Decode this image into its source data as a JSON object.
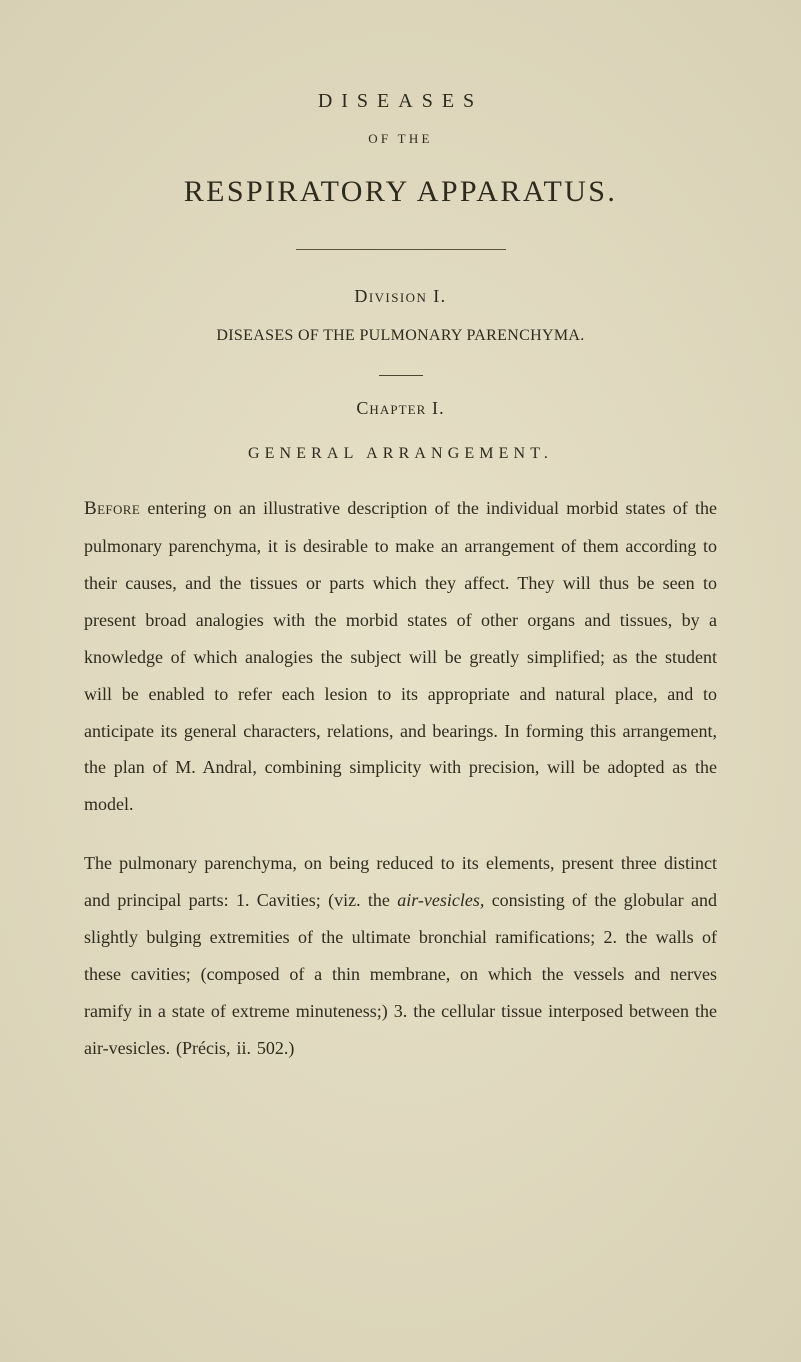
{
  "page": {
    "background_color": "#e3dcc1",
    "text_color": "#2d2a1e",
    "font_family": "Georgia, serif",
    "body_fontsize": 18,
    "body_lineheight": 2.05
  },
  "header": {
    "title_small": "DISEASES",
    "of_the": "OF THE",
    "title_big": "RESPIRATORY APPARATUS."
  },
  "division": {
    "label": "Division I.",
    "subtitle": "DISEASES OF THE PULMONARY PARENCHYMA."
  },
  "chapter": {
    "label": "Chapter I.",
    "heading": "GENERAL ARRANGEMENT."
  },
  "paragraphs": {
    "p1_lead": "Before",
    "p1_rest": " entering on an illustrative description of the individual morbid states of the pulmonary parenchyma, it is desirable to make an arrangement of them according to their causes, and the tissues or parts which they affect. They will thus be seen to present broad analogies with the morbid states of other organs and tissues, by a knowledge of which analogies the subject will be greatly simplified; as the student will be enabled to refer each lesion to its appropriate and natural place, and to anticipate its general characters, relations, and bearings. In forming this arrangement, the plan of M. Andral, combining simplicity with precision, will be adopted as the model.",
    "p2_a": "The pulmonary parenchyma, on being reduced to its elements, present three distinct and principal parts: 1. Cavities; (viz. the ",
    "p2_em": "air-vesicles,",
    "p2_b": " consisting of the globular and slightly bulging extremities of the ultimate bronchial ramifications; 2. the walls of these cavities; (composed of a thin membrane, on which the vessels and nerves ramify in a state of extreme minuteness;) 3. the cellular tissue interposed between the air-vesicles. (Précis, ii. 502.)"
  },
  "rules": {
    "long_rule_width": 210,
    "short_rule_width": 44,
    "rule_color": "#5a543e"
  }
}
